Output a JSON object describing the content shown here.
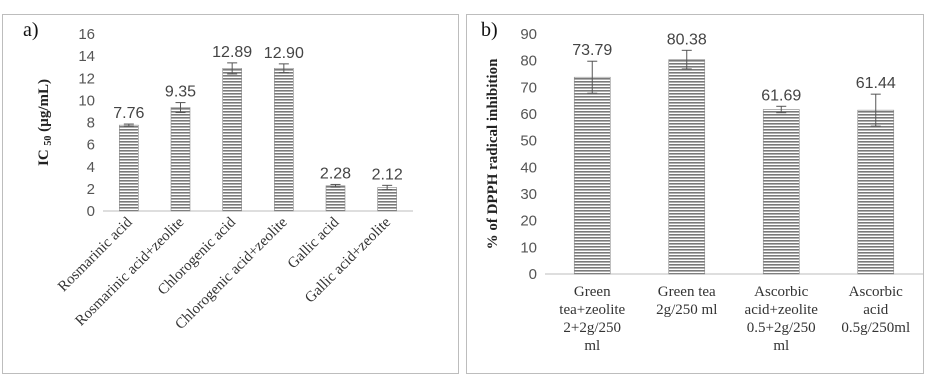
{
  "chart_data": [
    {
      "type": "bar",
      "panel_label": "a)",
      "title": "",
      "xlabel": "",
      "ylabel": "IC",
      "ylabel_sub": "50",
      "ylabel_unit": "(µg/mL)",
      "ylim": [
        0,
        16
      ],
      "yticks": [
        0,
        2,
        4,
        6,
        8,
        10,
        12,
        14,
        16
      ],
      "categories": [
        "Rosmarinic acid",
        "Rosmarinic acid+zeolite",
        "Chlorogenic acid",
        "Chlorogenic acid+zeolite",
        "Gallic acid",
        "Gallic acid+zeolite"
      ],
      "values": [
        7.76,
        9.35,
        12.89,
        12.9,
        2.28,
        2.12
      ],
      "data_labels": [
        "7.76",
        "9.35",
        "12.89",
        "12.90",
        "2.28",
        "2.12"
      ],
      "errors": [
        0.1,
        0.45,
        0.5,
        0.4,
        0.12,
        0.2
      ],
      "grid": false,
      "bar_pattern": "horizontal-stripes",
      "bar_color": "#7a7a7a"
    },
    {
      "type": "bar",
      "panel_label": "b)",
      "title": "",
      "xlabel": "",
      "ylabel": "% of DPPH radical inhibition",
      "ylim": [
        0,
        90
      ],
      "yticks": [
        0,
        10,
        20,
        30,
        40,
        50,
        60,
        70,
        80,
        90
      ],
      "categories": [
        [
          "Green",
          "tea+zeolite",
          "2+2g/250",
          "ml"
        ],
        [
          "Green tea",
          "2g/250 ml"
        ],
        [
          "Ascorbic",
          "acid+zeolite",
          "0.5+2g/250",
          "ml"
        ],
        [
          "Ascorbic",
          "acid",
          "0.5g/250ml"
        ]
      ],
      "values": [
        73.79,
        80.38,
        61.69,
        61.44
      ],
      "data_labels": [
        "73.79",
        "80.38",
        "61.69",
        "61.44"
      ],
      "errors": [
        6.0,
        3.5,
        1.2,
        6.0
      ],
      "grid": false,
      "bar_pattern": "horizontal-stripes",
      "bar_color": "#7a7a7a"
    }
  ]
}
